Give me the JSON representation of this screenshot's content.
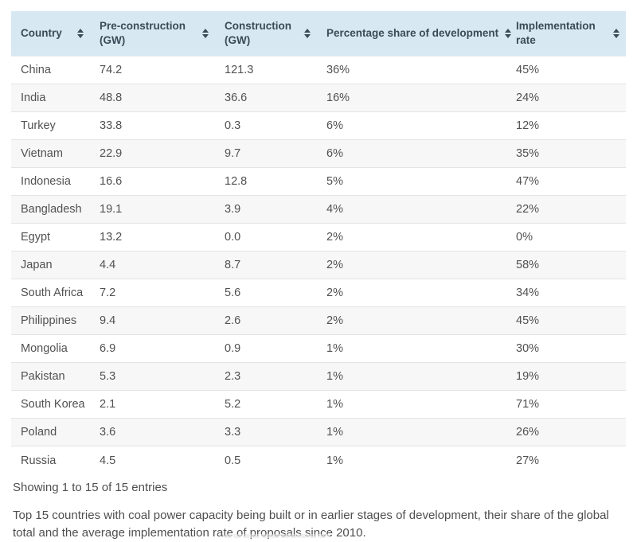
{
  "table": {
    "columns": [
      {
        "id": "country",
        "label": "Country"
      },
      {
        "id": "pre_construction",
        "label": "Pre-construction (GW)"
      },
      {
        "id": "construction",
        "label": "Construction (GW)"
      },
      {
        "id": "share",
        "label": "Percentage share of development"
      },
      {
        "id": "rate",
        "label": "Implementation rate"
      }
    ],
    "rows": [
      {
        "country": "China",
        "pre_construction": "74.2",
        "construction": "121.3",
        "share": "36%",
        "rate": "45%"
      },
      {
        "country": "India",
        "pre_construction": "48.8",
        "construction": "36.6",
        "share": "16%",
        "rate": "24%"
      },
      {
        "country": "Turkey",
        "pre_construction": "33.8",
        "construction": "0.3",
        "share": "6%",
        "rate": "12%"
      },
      {
        "country": "Vietnam",
        "pre_construction": "22.9",
        "construction": "9.7",
        "share": "6%",
        "rate": "35%"
      },
      {
        "country": "Indonesia",
        "pre_construction": "16.6",
        "construction": "12.8",
        "share": "5%",
        "rate": "47%"
      },
      {
        "country": "Bangladesh",
        "pre_construction": "19.1",
        "construction": "3.9",
        "share": "4%",
        "rate": "22%"
      },
      {
        "country": "Egypt",
        "pre_construction": "13.2",
        "construction": "0.0",
        "share": "2%",
        "rate": "0%"
      },
      {
        "country": "Japan",
        "pre_construction": "4.4",
        "construction": "8.7",
        "share": "2%",
        "rate": "58%"
      },
      {
        "country": "South Africa",
        "pre_construction": "7.2",
        "construction": "5.6",
        "share": "2%",
        "rate": "34%"
      },
      {
        "country": "Philippines",
        "pre_construction": "9.4",
        "construction": "2.6",
        "share": "2%",
        "rate": "45%"
      },
      {
        "country": "Mongolia",
        "pre_construction": "6.9",
        "construction": "0.9",
        "share": "1%",
        "rate": "30%"
      },
      {
        "country": "Pakistan",
        "pre_construction": "5.3",
        "construction": "2.3",
        "share": "1%",
        "rate": "19%"
      },
      {
        "country": "South Korea",
        "pre_construction": "2.1",
        "construction": "5.2",
        "share": "1%",
        "rate": "71%"
      },
      {
        "country": "Poland",
        "pre_construction": "3.6",
        "construction": "3.3",
        "share": "1%",
        "rate": "26%"
      },
      {
        "country": "Russia",
        "pre_construction": "4.5",
        "construction": "0.5",
        "share": "1%",
        "rate": "27%"
      }
    ]
  },
  "footer": {
    "showing": "Showing 1 to 15 of 15 entries",
    "caption": "Top 15 countries with coal power capacity being built or in earlier stages of development, their share of the global total and the average implementation rate of proposals since 2010."
  },
  "colors": {
    "header_bg": "#d8e8f3",
    "header_text": "#3b4a57",
    "row_alt_bg": "#f7f7f7",
    "row_border": "#e4e4e4",
    "cell_text": "#515151"
  }
}
